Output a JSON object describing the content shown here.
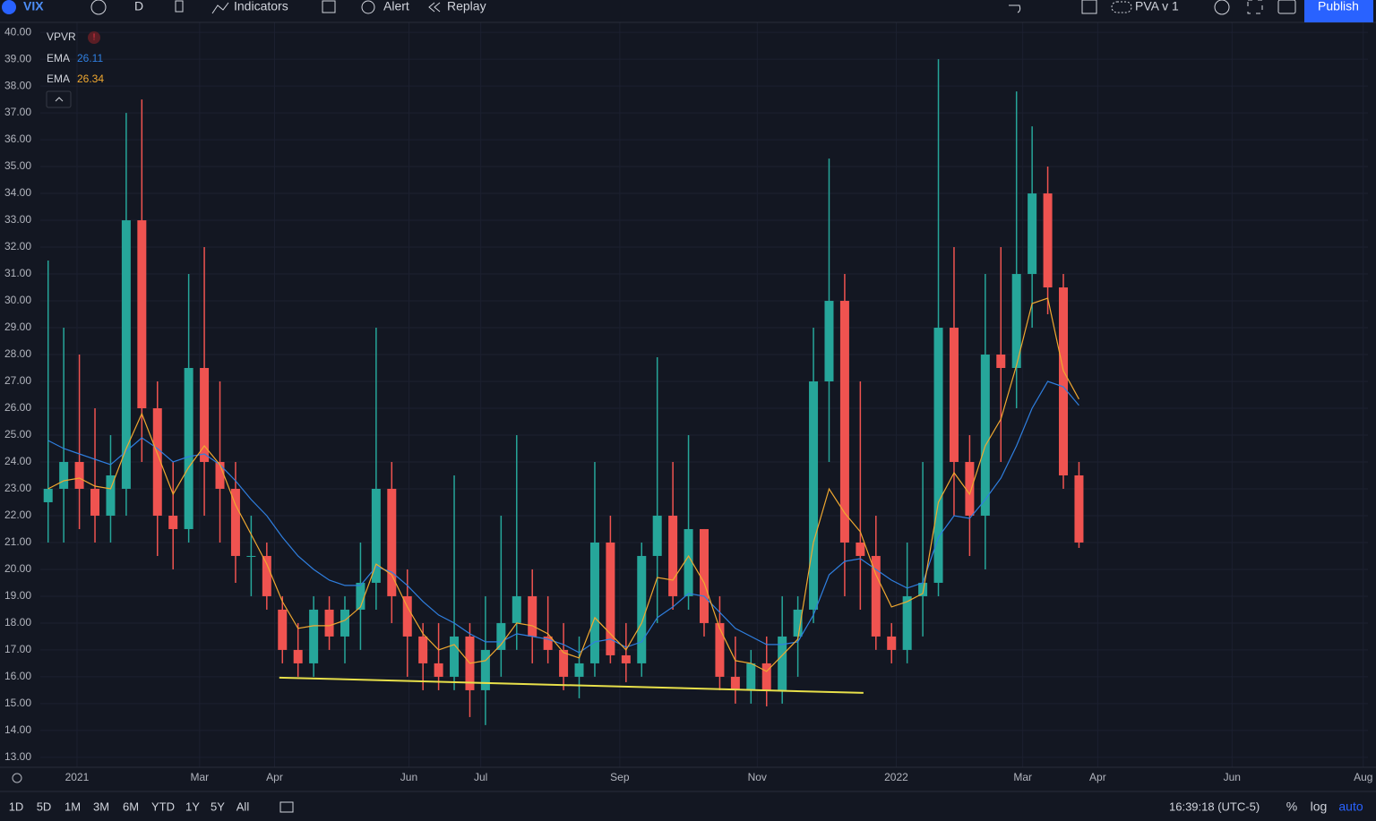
{
  "toolbar": {
    "symbol": "VIX",
    "interval": "D",
    "indicators": "Indicators",
    "alert": "Alert",
    "replay": "Replay",
    "layout": "PVA v 1",
    "publish": "Publish"
  },
  "chart_data": {
    "type": "candlestick",
    "legend_items": [
      "VPVR"
    ],
    "open": [
      22.5,
      23,
      24,
      23,
      22,
      23,
      33,
      26,
      22,
      21.5,
      27.5,
      24,
      23,
      20.5,
      20.5,
      18.5,
      17,
      16.5,
      18.5,
      17.5,
      18.5,
      19.5,
      23,
      19,
      17.5,
      16.5,
      16,
      17.5,
      15.5,
      17,
      18,
      19,
      17.5,
      17,
      16,
      16.5,
      21,
      16.8,
      16.5,
      20.5,
      22,
      19,
      21.5,
      18,
      16,
      15.5,
      16.5,
      15.5,
      17.5,
      18.5,
      27,
      30,
      21,
      20.5,
      17.5,
      17,
      19,
      19.5,
      29,
      24,
      22,
      28,
      27.5,
      31,
      34,
      30.5,
      23.5
    ],
    "high": [
      31.5,
      29,
      28,
      26,
      25,
      37,
      37.5,
      27,
      24,
      31,
      32,
      27,
      24,
      22,
      21,
      19,
      18,
      19,
      19,
      19,
      21,
      29,
      24,
      20,
      18,
      18,
      23.5,
      18,
      19,
      22,
      25,
      20,
      19,
      18,
      17.5,
      24,
      22,
      18,
      21,
      27.9,
      24,
      25,
      21.5,
      19,
      17.5,
      17,
      17.5,
      19,
      19,
      29,
      35.3,
      31,
      27,
      22,
      18,
      21,
      24,
      39,
      32,
      25,
      31,
      32,
      37.8,
      36.5,
      35,
      31,
      24
    ],
    "low": [
      21,
      21,
      21.5,
      21,
      21,
      22,
      24,
      20.5,
      20,
      21,
      22,
      21,
      19.5,
      19,
      18.5,
      16.5,
      16,
      16,
      17,
      16.5,
      17,
      18.5,
      18,
      16,
      15.5,
      15.5,
      15.5,
      14.5,
      14.2,
      16,
      17,
      16.5,
      16.5,
      15.5,
      15.2,
      16,
      16.5,
      15.8,
      16,
      18,
      18.5,
      18.5,
      17.5,
      15.5,
      15,
      15,
      14.9,
      15,
      16,
      18,
      24,
      19,
      18.5,
      17,
      16.5,
      16.5,
      17.5,
      19,
      22,
      20.5,
      20,
      24,
      26,
      29,
      29.5,
      23,
      20.8
    ],
    "close": [
      23,
      24,
      23,
      22,
      23.5,
      33,
      26,
      22,
      21.5,
      27.5,
      24,
      23,
      20.5,
      20.5,
      19,
      17,
      16.5,
      18.5,
      17.5,
      18.5,
      19.5,
      23,
      19,
      17.5,
      16.5,
      16,
      17.5,
      15.5,
      17,
      18,
      19,
      17.5,
      17,
      16,
      16.5,
      21,
      16.8,
      16.5,
      20.5,
      22,
      19,
      21.5,
      18,
      16,
      15.5,
      16.5,
      15.5,
      17.5,
      18.5,
      27,
      30,
      21,
      20.5,
      17.5,
      17,
      19,
      19.5,
      29,
      24,
      22,
      28,
      27.5,
      31,
      34,
      30.5,
      23.5,
      21
    ],
    "up_color": "#26a69a",
    "down_color": "#ef5350",
    "series": [
      {
        "name": "EMA",
        "color": "#2f7fe0",
        "values": [
          24.8,
          24.5,
          24.3,
          24.1,
          23.9,
          24.4,
          24.9,
          24.5,
          24.0,
          24.2,
          24.3,
          23.9,
          23.3,
          22.6,
          22.0,
          21.2,
          20.5,
          20.0,
          19.6,
          19.4,
          19.4,
          20.1,
          19.9,
          19.4,
          18.8,
          18.3,
          18.0,
          17.6,
          17.3,
          17.3,
          17.6,
          17.5,
          17.4,
          17.2,
          16.9,
          17.3,
          17.4,
          17.1,
          17.3,
          18.2,
          18.6,
          19.1,
          19.0,
          18.4,
          17.8,
          17.5,
          17.2,
          17.2,
          17.3,
          18.3,
          19.8,
          20.3,
          20.4,
          20.0,
          19.6,
          19.3,
          19.5,
          21.2,
          22.0,
          21.9,
          22.6,
          23.4,
          24.6,
          26.0,
          27.0,
          26.8,
          26.11
        ]
      },
      {
        "name": "EMA",
        "color": "#f0a830",
        "values": [
          23.0,
          23.3,
          23.4,
          23.1,
          23.0,
          24.5,
          25.8,
          24.3,
          22.8,
          23.8,
          24.6,
          23.9,
          22.4,
          21.3,
          20.2,
          18.8,
          17.8,
          17.9,
          17.9,
          18.1,
          18.6,
          20.2,
          19.8,
          18.6,
          17.6,
          17.0,
          17.2,
          16.5,
          16.6,
          17.2,
          18.0,
          17.9,
          17.6,
          16.9,
          16.7,
          18.2,
          17.6,
          17.0,
          18.0,
          19.7,
          19.6,
          20.5,
          19.5,
          17.8,
          16.6,
          16.5,
          16.2,
          16.8,
          17.4,
          21.0,
          23.0,
          22.1,
          21.4,
          19.8,
          18.6,
          18.8,
          19.1,
          22.5,
          23.6,
          22.8,
          24.6,
          25.6,
          27.6,
          29.9,
          30.1,
          27.4,
          26.34
        ]
      }
    ],
    "trendline": {
      "x": [
        14.8,
        52.2
      ],
      "y": [
        15.97,
        15.4
      ],
      "color": "#e8e04a"
    },
    "xlim": [
      -0.5,
      84.5
    ],
    "xticks": [
      {
        "value": 1.85,
        "label": "2021"
      },
      {
        "value": 9.7,
        "label": "Mar"
      },
      {
        "value": 14.5,
        "label": "Apr"
      },
      {
        "value": 23.1,
        "label": "Jun"
      },
      {
        "value": 27.7,
        "label": "Jul"
      },
      {
        "value": 36.6,
        "label": "Sep"
      },
      {
        "value": 45.4,
        "label": "Nov"
      },
      {
        "value": 54.3,
        "label": "2022"
      },
      {
        "value": 62.4,
        "label": "Mar"
      },
      {
        "value": 67.2,
        "label": "Apr"
      },
      {
        "value": 75.8,
        "label": "Jun"
      },
      {
        "value": 84.2,
        "label": "Aug"
      }
    ],
    "ylim": [
      12.63,
      40.37
    ],
    "yticks": [
      {
        "value": 40,
        "label": "40.00"
      },
      {
        "value": 39,
        "label": "39.00"
      },
      {
        "value": 38,
        "label": "38.00"
      },
      {
        "value": 37,
        "label": "37.00"
      },
      {
        "value": 36,
        "label": "36.00"
      },
      {
        "value": 35,
        "label": "35.00"
      },
      {
        "value": 34,
        "label": "34.00"
      },
      {
        "value": 33,
        "label": "33.00"
      },
      {
        "value": 32,
        "label": "32.00"
      },
      {
        "value": 31,
        "label": "31.00"
      },
      {
        "value": 30,
        "label": "30.00"
      },
      {
        "value": 29,
        "label": "29.00"
      },
      {
        "value": 28,
        "label": "28.00"
      },
      {
        "value": 27,
        "label": "27.00"
      },
      {
        "value": 26,
        "label": "26.00"
      },
      {
        "value": 25,
        "label": "25.00"
      },
      {
        "value": 24,
        "label": "24.00"
      },
      {
        "value": 23,
        "label": "23.00"
      },
      {
        "value": 22,
        "label": "22.00"
      },
      {
        "value": 21,
        "label": "21.00"
      },
      {
        "value": 20,
        "label": "20.00"
      },
      {
        "value": 19,
        "label": "19.00"
      },
      {
        "value": 18,
        "label": "18.00"
      },
      {
        "value": 17,
        "label": "17.00"
      },
      {
        "value": 16,
        "label": "16.00"
      },
      {
        "value": 15,
        "label": "15.00"
      },
      {
        "value": 14,
        "label": "14.00"
      },
      {
        "value": 13,
        "label": "13.00"
      }
    ],
    "grid": true
  },
  "bottom_bar": {
    "ranges": [
      "1D",
      "5D",
      "1M",
      "3M",
      "6M",
      "YTD",
      "1Y",
      "5Y",
      "All"
    ],
    "clock": "16:39:18 (UTC-5)",
    "percent": "%",
    "log": "log",
    "auto": "auto"
  }
}
